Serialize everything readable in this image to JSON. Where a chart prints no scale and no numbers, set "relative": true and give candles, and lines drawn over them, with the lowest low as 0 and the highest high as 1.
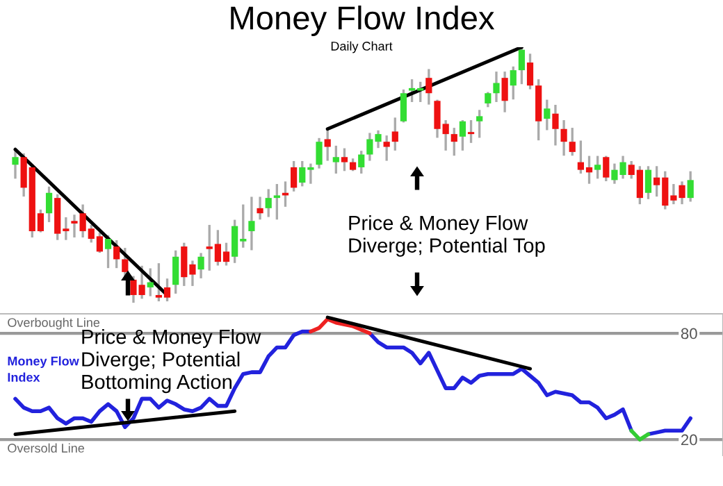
{
  "chart_data": [
    {
      "type": "candlestick",
      "title": "Money Flow Index",
      "subtitle": "Daily Chart",
      "relative": true,
      "annotations": [
        "Price & Money Flow\nDiverge; Potential Top"
      ],
      "categories": [
        null,
        null,
        null,
        null,
        null,
        null,
        null,
        null,
        null,
        null,
        null,
        null,
        null,
        null,
        null,
        null,
        null,
        null,
        null,
        null,
        null,
        null,
        null,
        null,
        null,
        null,
        null,
        null,
        null,
        null,
        null,
        null,
        null,
        null,
        null,
        null,
        null,
        null,
        null,
        null,
        null,
        null,
        null,
        null,
        null,
        null,
        null,
        null,
        null,
        null,
        null,
        null,
        null,
        null,
        null,
        null,
        null,
        null,
        null,
        null,
        null,
        null,
        null,
        null,
        null,
        null,
        null,
        null,
        null,
        null,
        null,
        null,
        null,
        null,
        null,
        null,
        null,
        null,
        null,
        null,
        null
      ],
      "ohlc": [
        [
          0.54,
          0.59,
          0.49,
          0.57
        ],
        [
          0.57,
          0.58,
          0.42,
          0.45
        ],
        [
          0.53,
          0.53,
          0.26,
          0.28
        ],
        [
          0.35,
          0.36,
          0.28,
          0.28
        ],
        [
          0.35,
          0.45,
          0.32,
          0.43
        ],
        [
          0.41,
          0.42,
          0.25,
          0.27
        ],
        [
          0.29,
          0.33,
          0.25,
          0.28
        ],
        [
          0.32,
          0.34,
          0.26,
          0.31
        ],
        [
          0.35,
          0.38,
          0.26,
          0.28
        ],
        [
          0.29,
          0.3,
          0.24,
          0.25
        ],
        [
          0.26,
          0.27,
          0.2,
          0.2
        ],
        [
          0.21,
          0.26,
          0.14,
          0.25
        ],
        [
          0.22,
          0.24,
          0.14,
          0.17
        ],
        [
          0.17,
          0.21,
          0.1,
          0.12
        ],
        [
          0.09,
          0.1,
          0.0,
          0.03
        ],
        [
          0.07,
          0.14,
          0.02,
          0.03
        ],
        [
          0.06,
          0.13,
          0.03,
          0.08
        ],
        [
          0.03,
          0.15,
          0.01,
          0.02
        ],
        [
          0.06,
          0.09,
          0.01,
          0.02
        ],
        [
          0.07,
          0.2,
          0.04,
          0.18
        ],
        [
          0.22,
          0.23,
          0.07,
          0.1
        ],
        [
          0.15,
          0.16,
          0.07,
          0.11
        ],
        [
          0.13,
          0.19,
          0.1,
          0.18
        ],
        [
          0.22,
          0.3,
          0.13,
          0.21
        ],
        [
          0.23,
          0.28,
          0.15,
          0.16
        ],
        [
          0.2,
          0.23,
          0.15,
          0.16
        ],
        [
          0.18,
          0.32,
          0.16,
          0.3
        ],
        [
          0.24,
          0.38,
          0.22,
          0.25
        ],
        [
          0.28,
          0.41,
          0.21,
          0.32
        ],
        [
          0.37,
          0.41,
          0.33,
          0.35
        ],
        [
          0.37,
          0.44,
          0.34,
          0.41
        ],
        [
          0.41,
          0.46,
          0.33,
          0.42
        ],
        [
          0.43,
          0.47,
          0.38,
          0.42
        ],
        [
          0.53,
          0.55,
          0.44,
          0.45
        ],
        [
          0.47,
          0.55,
          0.46,
          0.53
        ],
        [
          0.52,
          0.54,
          0.47,
          0.53
        ],
        [
          0.54,
          0.64,
          0.53,
          0.63
        ],
        [
          0.64,
          0.68,
          0.56,
          0.61
        ],
        [
          0.55,
          0.61,
          0.51,
          0.57
        ],
        [
          0.57,
          0.6,
          0.52,
          0.55
        ],
        [
          0.55,
          0.56,
          0.52,
          0.52
        ],
        [
          0.53,
          0.59,
          0.51,
          0.58
        ],
        [
          0.58,
          0.66,
          0.56,
          0.64
        ],
        [
          0.63,
          0.67,
          0.61,
          0.66
        ],
        [
          0.63,
          0.65,
          0.56,
          0.61
        ],
        [
          0.67,
          0.72,
          0.6,
          0.63
        ],
        [
          0.71,
          0.83,
          0.71,
          0.82
        ],
        [
          0.83,
          0.87,
          0.79,
          0.84
        ],
        [
          0.83,
          0.86,
          0.79,
          0.84
        ],
        [
          0.88,
          0.91,
          0.78,
          0.82
        ],
        [
          0.79,
          0.79,
          0.65,
          0.68
        ],
        [
          0.7,
          0.71,
          0.6,
          0.66
        ],
        [
          0.66,
          0.68,
          0.58,
          0.63
        ],
        [
          0.65,
          0.71,
          0.6,
          0.71
        ],
        [
          0.66,
          0.71,
          0.63,
          0.66
        ],
        [
          0.71,
          0.75,
          0.65,
          0.73
        ],
        [
          0.78,
          0.82,
          0.77,
          0.82
        ],
        [
          0.82,
          0.9,
          0.79,
          0.86
        ],
        [
          0.88,
          0.9,
          0.75,
          0.79
        ],
        [
          0.85,
          0.92,
          0.8,
          0.91
        ],
        [
          0.91,
          1.0,
          0.86,
          0.99
        ],
        [
          0.94,
          0.97,
          0.84,
          0.85
        ],
        [
          0.85,
          0.87,
          0.64,
          0.71
        ],
        [
          0.72,
          0.79,
          0.68,
          0.76
        ],
        [
          0.74,
          0.77,
          0.62,
          0.68
        ],
        [
          0.68,
          0.71,
          0.58,
          0.63
        ],
        [
          0.63,
          0.68,
          0.58,
          0.59
        ],
        [
          0.55,
          0.63,
          0.51,
          0.52
        ],
        [
          0.53,
          0.57,
          0.47,
          0.51
        ],
        [
          0.52,
          0.57,
          0.49,
          0.54
        ],
        [
          0.57,
          0.57,
          0.48,
          0.49
        ],
        [
          0.48,
          0.54,
          0.47,
          0.52
        ],
        [
          0.5,
          0.57,
          0.49,
          0.55
        ],
        [
          0.54,
          0.55,
          0.49,
          0.5
        ],
        [
          0.52,
          0.53,
          0.39,
          0.41
        ],
        [
          0.43,
          0.53,
          0.41,
          0.52
        ],
        [
          0.49,
          0.53,
          0.42,
          0.46
        ],
        [
          0.49,
          0.51,
          0.37,
          0.38
        ],
        [
          0.42,
          0.46,
          0.39,
          0.4
        ],
        [
          0.46,
          0.47,
          0.39,
          0.41
        ],
        [
          0.41,
          0.51,
          0.4,
          0.48
        ]
      ],
      "colors": [
        "#33dd33",
        "#ee1111",
        "#ee1111",
        "#ee1111",
        "#33dd33",
        "#ee1111",
        "#ee1111",
        "#ee1111",
        "#ee1111",
        "#ee1111",
        "#ee1111",
        "#33dd33",
        "#ee1111",
        "#ee1111",
        "#ee1111",
        "#ee1111",
        "#33dd33",
        "#ee1111",
        "#ee1111",
        "#33dd33",
        "#ee1111",
        "#ee1111",
        "#33dd33",
        "#ee1111",
        "#ee1111",
        "#ee1111",
        "#33dd33",
        "#33dd33",
        "#33dd33",
        "#ee1111",
        "#33dd33",
        "#33dd33",
        "#ee1111",
        "#ee1111",
        "#33dd33",
        "#33dd33",
        "#33dd33",
        "#ee1111",
        "#33dd33",
        "#ee1111",
        "#ee1111",
        "#33dd33",
        "#33dd33",
        "#33dd33",
        "#ee1111",
        "#ee1111",
        "#33dd33",
        "#33dd33",
        "#33dd33",
        "#ee1111",
        "#ee1111",
        "#ee1111",
        "#ee1111",
        "#33dd33",
        "#ee1111",
        "#33dd33",
        "#33dd33",
        "#33dd33",
        "#ee1111",
        "#33dd33",
        "#33dd33",
        "#ee1111",
        "#ee1111",
        "#33dd33",
        "#ee1111",
        "#ee1111",
        "#ee1111",
        "#ee1111",
        "#ee1111",
        "#33dd33",
        "#ee1111",
        "#33dd33",
        "#33dd33",
        "#ee1111",
        "#ee1111",
        "#33dd33",
        "#ee1111",
        "#ee1111",
        "#ee1111",
        "#ee1111",
        "#33dd33"
      ],
      "series": [
        {
          "type": "line",
          "color": "#000000",
          "values": [
            0.6,
            null,
            null,
            null,
            null,
            null,
            null,
            null,
            null,
            null,
            null,
            null,
            null,
            null,
            null,
            null,
            null,
            null,
            0.03,
            null,
            null,
            null,
            null,
            null,
            null,
            null,
            null,
            null,
            null,
            null,
            null,
            null,
            null,
            null,
            null,
            null,
            null,
            null,
            null,
            null,
            null,
            null,
            null,
            null,
            null,
            null,
            null,
            null,
            null,
            null,
            null,
            null,
            null,
            null,
            null,
            null,
            null,
            null,
            null,
            null,
            null,
            null,
            null,
            null,
            null,
            null,
            null,
            null,
            null,
            null,
            null,
            null,
            null,
            null,
            null,
            null,
            null,
            null,
            null,
            null,
            null
          ]
        },
        {
          "type": "line",
          "color": "#000000",
          "values": [
            null,
            null,
            null,
            null,
            null,
            null,
            null,
            null,
            null,
            null,
            null,
            null,
            null,
            null,
            null,
            null,
            null,
            null,
            null,
            null,
            null,
            null,
            null,
            null,
            null,
            null,
            null,
            null,
            null,
            null,
            null,
            null,
            null,
            null,
            null,
            null,
            null,
            0.68,
            null,
            null,
            null,
            null,
            null,
            null,
            null,
            null,
            null,
            null,
            null,
            null,
            null,
            null,
            null,
            null,
            null,
            null,
            null,
            null,
            null,
            null,
            1.0,
            null,
            null,
            null,
            null,
            null,
            null,
            null,
            null,
            null,
            null,
            null,
            null,
            null,
            null,
            null,
            null,
            null,
            null,
            null,
            null
          ]
        }
      ]
    },
    {
      "type": "line",
      "ylim": [
        11,
        91
      ],
      "yticks": [
        80,
        20
      ],
      "tick_labels": "y",
      "annotations": [
        "Price & Money Flow\nDiverge; Potential\nBottoming Action"
      ],
      "categories": [
        null,
        null,
        null,
        null,
        null,
        null,
        null,
        null,
        null,
        null,
        null,
        null,
        null,
        null,
        null,
        null,
        null,
        null,
        null,
        null,
        null,
        null,
        null,
        null,
        null,
        null,
        null,
        null,
        null,
        null,
        null,
        null,
        null,
        null,
        null,
        null,
        null,
        null,
        null,
        null,
        null,
        null,
        null,
        null,
        null,
        null,
        null,
        null,
        null,
        null,
        null,
        null,
        null,
        null,
        null,
        null,
        null,
        null,
        null,
        null,
        null,
        null,
        null,
        null,
        null,
        null,
        null,
        null,
        null,
        null,
        null,
        null,
        null,
        null,
        null,
        null,
        null,
        null,
        null,
        null,
        null
      ],
      "ref_lines": [
        {
          "axis": "y",
          "value": 80,
          "label": "Overbought Line",
          "color": "#999999"
        },
        {
          "axis": "y",
          "value": 20,
          "label": "Oversold Line",
          "color": "#999999"
        }
      ],
      "series": [
        {
          "name": "Money Flow Index",
          "color": "#2222dd",
          "values": [
            43,
            38,
            36,
            36,
            38,
            32,
            29,
            32,
            32,
            30,
            36,
            40,
            36,
            27,
            32,
            43,
            43,
            38,
            42,
            40,
            37,
            36,
            38,
            43,
            39,
            39,
            49,
            57,
            58,
            58,
            67,
            72,
            72,
            79,
            81,
            81,
            null,
            null,
            null,
            null,
            null,
            null,
            80,
            75,
            72,
            72,
            72,
            69,
            63,
            69,
            59,
            49,
            49,
            55,
            52,
            56,
            57,
            57,
            57,
            57,
            60,
            56,
            52,
            45,
            47,
            46,
            45,
            41,
            41,
            38,
            32,
            34,
            37,
            25,
            null,
            23,
            24,
            25,
            25,
            25,
            32
          ]
        },
        {
          "color": "#ee2222",
          "values": [
            null,
            null,
            null,
            null,
            null,
            null,
            null,
            null,
            null,
            null,
            null,
            null,
            null,
            null,
            null,
            null,
            null,
            null,
            null,
            null,
            null,
            null,
            null,
            null,
            null,
            null,
            null,
            null,
            null,
            null,
            null,
            null,
            null,
            null,
            null,
            81,
            83,
            88,
            86,
            85,
            84,
            82,
            80,
            null,
            null,
            null,
            null,
            null,
            null,
            null,
            null,
            null,
            null,
            null,
            null,
            null,
            null,
            null,
            null,
            null,
            null,
            null,
            null,
            null,
            null,
            null,
            null,
            null,
            null,
            null,
            null,
            null,
            null,
            null,
            null,
            null,
            null,
            null,
            null,
            null,
            null
          ]
        },
        {
          "color": "#33cc33",
          "values": [
            null,
            null,
            null,
            null,
            null,
            null,
            null,
            null,
            null,
            null,
            null,
            null,
            null,
            null,
            null,
            null,
            null,
            null,
            null,
            null,
            null,
            null,
            null,
            null,
            null,
            null,
            null,
            null,
            null,
            null,
            null,
            null,
            null,
            null,
            null,
            null,
            null,
            null,
            null,
            null,
            null,
            null,
            null,
            null,
            null,
            null,
            null,
            null,
            null,
            null,
            null,
            null,
            null,
            null,
            null,
            null,
            null,
            null,
            null,
            null,
            null,
            null,
            null,
            null,
            null,
            null,
            null,
            null,
            null,
            null,
            null,
            null,
            null,
            25,
            20,
            23,
            null,
            null,
            null,
            null,
            null
          ]
        },
        {
          "color": "#000000",
          "values": [
            23,
            null,
            null,
            null,
            null,
            null,
            null,
            null,
            null,
            null,
            null,
            null,
            null,
            null,
            null,
            null,
            null,
            null,
            null,
            null,
            null,
            null,
            null,
            null,
            null,
            null,
            36,
            null,
            null,
            null,
            null,
            null,
            null,
            null,
            null,
            null,
            null,
            null,
            null,
            null,
            null,
            null,
            null,
            null,
            null,
            null,
            null,
            null,
            null,
            null,
            null,
            null,
            null,
            null,
            null,
            null,
            null,
            null,
            null,
            null,
            null,
            null,
            null,
            null,
            null,
            null,
            null,
            null,
            null,
            null,
            null,
            null,
            null,
            null,
            null,
            null,
            null,
            null,
            null,
            null,
            null
          ]
        },
        {
          "color": "#000000",
          "values": [
            null,
            null,
            null,
            null,
            null,
            null,
            null,
            null,
            null,
            null,
            null,
            null,
            null,
            null,
            null,
            null,
            null,
            null,
            null,
            null,
            null,
            null,
            null,
            null,
            null,
            null,
            null,
            null,
            null,
            null,
            null,
            null,
            null,
            null,
            null,
            null,
            null,
            89,
            null,
            null,
            null,
            null,
            null,
            null,
            null,
            null,
            null,
            null,
            null,
            null,
            null,
            null,
            null,
            null,
            null,
            null,
            null,
            null,
            null,
            null,
            null,
            60,
            null,
            null,
            null,
            null,
            null,
            null,
            null,
            null,
            null,
            null,
            null,
            null,
            null,
            null,
            null,
            null,
            null,
            null,
            null
          ]
        }
      ]
    }
  ]
}
